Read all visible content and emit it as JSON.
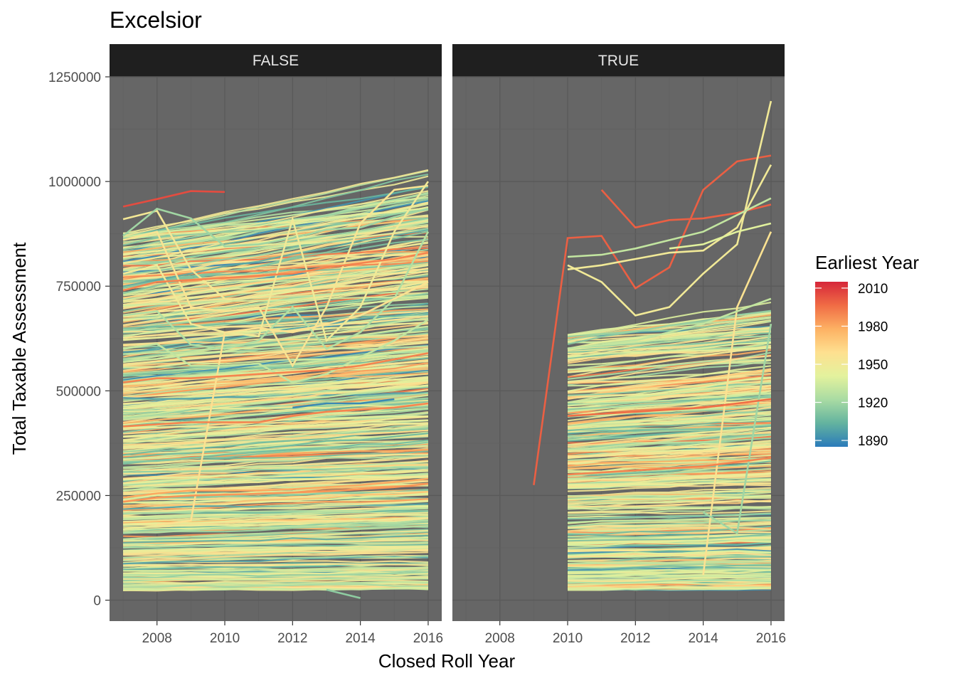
{
  "chart_data": {
    "type": "line",
    "title": "Excelsior",
    "xlabel": "Closed Roll Year",
    "ylabel": "Total Taxable Assessment",
    "xlim": [
      2006.6,
      2016.4
    ],
    "ylim": [
      -50000,
      1250000
    ],
    "x_ticks": [
      2008,
      2010,
      2012,
      2014,
      2016
    ],
    "x_tick_labels": [
      "2008",
      "2010",
      "2012",
      "2014",
      "2016"
    ],
    "y_ticks": [
      0,
      250000,
      500000,
      750000,
      1000000,
      1250000
    ],
    "y_tick_labels": [
      "0",
      "250000",
      "500000",
      "750000",
      "1000000",
      "1250000"
    ],
    "grid": true,
    "panel_background": "#666666",
    "facets": [
      "FALSE",
      "TRUE"
    ],
    "legend": {
      "title": "Earliest Year",
      "position": "right",
      "ticks": [
        2010,
        1980,
        1950,
        1920,
        1890
      ],
      "tick_labels": [
        "2010",
        "1980",
        "1950",
        "1920",
        "1890"
      ],
      "range": [
        1885,
        2015
      ],
      "colors": [
        "#2b7bba",
        "#63b39f",
        "#a9dba3",
        "#e3f29d",
        "#fee090",
        "#fdb163",
        "#f06c45",
        "#d6263a"
      ]
    },
    "series": [
      {
        "facet": "FALSE",
        "earliest_year": 2005,
        "x": [
          2007,
          2008,
          2009,
          2010
        ],
        "y": [
          940000,
          958000,
          977000,
          975000
        ]
      },
      {
        "facet": "FALSE",
        "earliest_year": 1952,
        "x": [
          2007,
          2008,
          2009,
          2010
        ],
        "y": [
          910000,
          930000,
          790000,
          720000
        ]
      },
      {
        "facet": "FALSE",
        "earliest_year": 1920,
        "x": [
          2007,
          2008,
          2009,
          2010,
          2011,
          2012,
          2013,
          2014,
          2015,
          2016
        ],
        "y": [
          870000,
          935000,
          912000,
          845000,
          850000,
          865000,
          885000,
          890000,
          915000,
          935000
        ]
      },
      {
        "facet": "FALSE",
        "earliest_year": 1955,
        "x": [
          2007,
          2008,
          2009,
          2010,
          2011,
          2012,
          2013,
          2014,
          2015,
          2016
        ],
        "y": [
          860000,
          880000,
          700000,
          690000,
          700000,
          560000,
          700000,
          900000,
          980000,
          990000
        ]
      },
      {
        "facet": "FALSE",
        "earliest_year": 1950,
        "x": [
          2007,
          2008,
          2009,
          2010,
          2011,
          2012,
          2013,
          2014,
          2015,
          2016
        ],
        "y": [
          780000,
          800000,
          660000,
          640000,
          630000,
          910000,
          620000,
          700000,
          880000,
          1000000
        ]
      },
      {
        "facet": "FALSE",
        "earliest_year": 1990,
        "x": [
          2007,
          2008,
          2009,
          2010,
          2011,
          2012,
          2013,
          2014,
          2015,
          2016
        ],
        "y": [
          740000,
          760000,
          765000,
          770000,
          775000,
          780000,
          795000,
          805000,
          815000,
          830000
        ]
      },
      {
        "facet": "FALSE",
        "earliest_year": 1925,
        "x": [
          2007,
          2008,
          2009,
          2010,
          2011,
          2012,
          2013,
          2014,
          2015,
          2016
        ],
        "y": [
          680000,
          690000,
          610000,
          600000,
          620000,
          700000,
          600000,
          640000,
          720000,
          880000
        ]
      },
      {
        "facet": "FALSE",
        "earliest_year": 1958,
        "x": [
          2008,
          2009,
          2010,
          2011,
          2012,
          2013,
          2014,
          2015,
          2016
        ],
        "y": [
          180000,
          190000,
          640000,
          650000,
          640000,
          660000,
          680000,
          720000,
          760000
        ]
      },
      {
        "facet": "FALSE",
        "earliest_year": 1930,
        "x": [
          2007,
          2008,
          2009,
          2010,
          2011,
          2012,
          2013,
          2014,
          2015,
          2016
        ],
        "y": [
          600000,
          612000,
          560000,
          560000,
          565000,
          520000,
          540000,
          580000,
          620000,
          670000
        ]
      },
      {
        "facet": "FALSE",
        "earliest_year": 1890,
        "x": [
          2012,
          2013,
          2014,
          2015
        ],
        "y": [
          460000,
          470000,
          470000,
          480000
        ]
      },
      {
        "facet": "FALSE",
        "earliest_year": 1990,
        "x": [
          2007,
          2008,
          2009,
          2010,
          2011,
          2012,
          2013,
          2014,
          2015,
          2016
        ],
        "y": [
          520000,
          530000,
          530000,
          535000,
          540000,
          545000,
          550000,
          560000,
          575000,
          590000
        ]
      },
      {
        "facet": "FALSE",
        "earliest_year": 1990,
        "x": [
          2007,
          2008,
          2009,
          2010,
          2011,
          2012,
          2013,
          2014,
          2015,
          2016
        ],
        "y": [
          415000,
          420000,
          425000,
          425000,
          425000,
          440000,
          450000,
          455000,
          460000,
          470000
        ]
      },
      {
        "facet": "FALSE",
        "earliest_year": 1980,
        "x": [
          2007,
          2008,
          2009,
          2010,
          2011,
          2012,
          2013,
          2014,
          2015,
          2016
        ],
        "y": [
          245000,
          255000,
          262000,
          262000,
          262000,
          265000,
          270000,
          275000,
          282000,
          290000
        ]
      },
      {
        "facet": "FALSE",
        "earliest_year": 1985,
        "x": [
          2007,
          2008,
          2009,
          2010,
          2011,
          2012,
          2013,
          2014,
          2015,
          2016
        ],
        "y": [
          235000,
          245000,
          250000,
          252000,
          254000,
          257000,
          260000,
          265000,
          270000,
          278000
        ]
      },
      {
        "facet": "FALSE",
        "earliest_year": 1915,
        "x": [
          2013,
          2014
        ],
        "y": [
          25000,
          5000
        ]
      },
      {
        "facet": "TRUE",
        "earliest_year": 2000,
        "x": [
          2009,
          2010,
          2011,
          2012,
          2013,
          2014,
          2015,
          2016
        ],
        "y": [
          275000,
          865000,
          870000,
          745000,
          795000,
          980000,
          1048000,
          1062000
        ]
      },
      {
        "facet": "TRUE",
        "earliest_year": 2000,
        "x": [
          2011,
          2012,
          2013,
          2014,
          2015,
          2016
        ],
        "y": [
          980000,
          890000,
          908000,
          912000,
          925000,
          945000
        ]
      },
      {
        "facet": "TRUE",
        "earliest_year": 1950,
        "x": [
          2010,
          2011,
          2012,
          2013,
          2014,
          2015,
          2016
        ],
        "y": [
          800000,
          760000,
          680000,
          700000,
          780000,
          850000,
          1192000
        ]
      },
      {
        "facet": "TRUE",
        "earliest_year": 1950,
        "x": [
          2010,
          2011,
          2012,
          2013,
          2014,
          2015,
          2016
        ],
        "y": [
          790000,
          800000,
          815000,
          830000,
          835000,
          890000,
          1040000
        ]
      },
      {
        "facet": "TRUE",
        "earliest_year": 1930,
        "x": [
          2010,
          2011,
          2012,
          2013,
          2014,
          2015,
          2016
        ],
        "y": [
          820000,
          825000,
          840000,
          860000,
          880000,
          920000,
          960000
        ]
      },
      {
        "facet": "TRUE",
        "earliest_year": 1957,
        "x": [
          2014,
          2015,
          2016
        ],
        "y": [
          60000,
          700000,
          880000
        ]
      },
      {
        "facet": "TRUE",
        "earliest_year": 1920,
        "x": [
          2014,
          2015,
          2016
        ],
        "y": [
          210000,
          160000,
          660000
        ]
      },
      {
        "facet": "TRUE",
        "earliest_year": 1996,
        "x": [
          2010,
          2011,
          2012,
          2013,
          2014,
          2015,
          2016
        ],
        "y": [
          440000,
          445000,
          450000,
          455000,
          460000,
          470000,
          480000
        ]
      },
      {
        "facet": "TRUE",
        "earliest_year": 1990,
        "x": [
          2010,
          2011,
          2012,
          2013,
          2014,
          2015,
          2016
        ],
        "y": [
          300000,
          305000,
          310000,
          315000,
          320000,
          330000,
          340000
        ]
      },
      {
        "facet": "TRUE",
        "earliest_year": 1940,
        "x": [
          2013,
          2014,
          2015,
          2016
        ],
        "y": [
          840000,
          850000,
          880000,
          900000
        ]
      },
      {
        "facet": "TRUE",
        "earliest_year": 1930,
        "x": [
          2010,
          2011,
          2012,
          2013,
          2014,
          2015,
          2016
        ],
        "y": [
          600000,
          610000,
          620000,
          640000,
          660000,
          690000,
          720000
        ]
      }
    ]
  }
}
